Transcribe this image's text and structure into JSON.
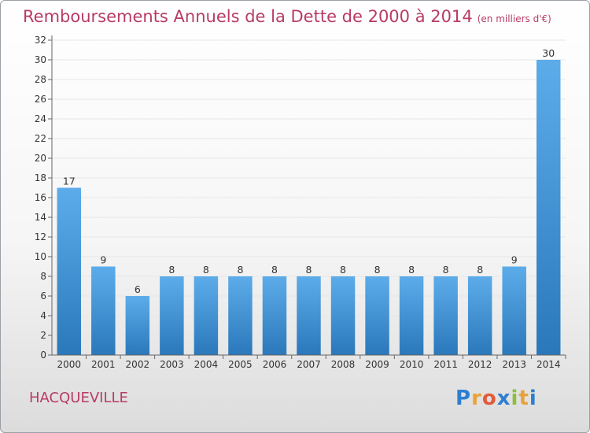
{
  "title": "Remboursements Annuels de la Dette de 2000 à 2014",
  "subtitle": "(en milliers d'€)",
  "commune": "HACQUEVILLE",
  "logo": {
    "letters": [
      "P",
      "r",
      "o",
      "x",
      "i",
      "t",
      "i"
    ],
    "colors": [
      "#2d7fd0",
      "#e8a23a",
      "#e35b3a",
      "#2d7fd0",
      "#8fbf3a",
      "#e8a23a",
      "#2d7fd0"
    ]
  },
  "colors": {
    "title": "#b83b66",
    "bar_light": "#5dacea",
    "bar_dark": "#2a78ba",
    "axis": "#666666",
    "grid": "#e6e6e6"
  },
  "chart_data": {
    "type": "bar",
    "title": "Remboursements Annuels de la Dette de 2000 à 2014",
    "subtitle": "(en milliers d'€)",
    "categories": [
      "2000",
      "2001",
      "2002",
      "2003",
      "2004",
      "2005",
      "2006",
      "2007",
      "2008",
      "2009",
      "2010",
      "2011",
      "2012",
      "2013",
      "2014"
    ],
    "values": [
      17,
      9,
      6,
      8,
      8,
      8,
      8,
      8,
      8,
      8,
      8,
      8,
      8,
      9,
      30
    ],
    "ylim": [
      0,
      32
    ],
    "yticks": [
      0,
      2,
      4,
      6,
      8,
      10,
      12,
      14,
      16,
      18,
      20,
      22,
      24,
      26,
      28,
      30,
      32
    ],
    "grid": true,
    "data_labels": true
  }
}
